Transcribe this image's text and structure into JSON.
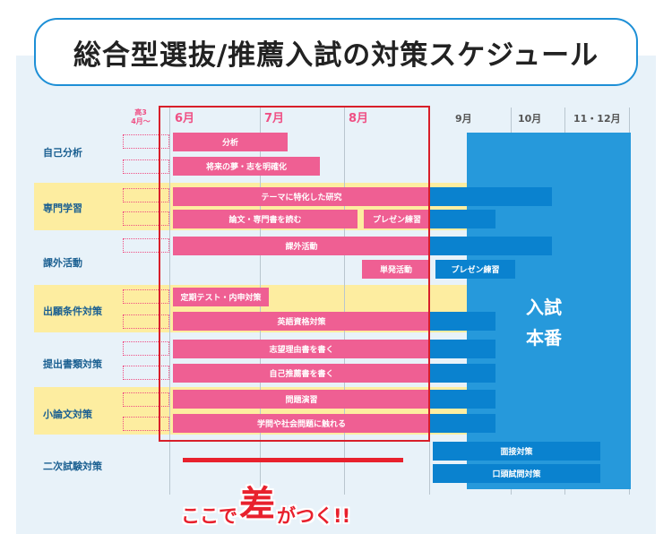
{
  "title": "総合型選抜/推薦入試の対策スケジュール",
  "colors": {
    "accent_blue": "#1d8fd6",
    "bar_pink": "#ef5f93",
    "bar_blue": "#0a82cf",
    "exam_panel": "#2699db",
    "band_yellow": "#fdeda0",
    "panel_bg": "#e8f2f9",
    "highlight_red": "#d81f2a"
  },
  "months": {
    "pre": [
      "高3",
      "4月〜"
    ],
    "items": [
      "6月",
      "7月",
      "8月",
      "9月",
      "10月",
      "11・12月"
    ]
  },
  "categories": [
    "自己分析",
    "専門学習",
    "課外活動",
    "出願条件対策",
    "提出書類対策",
    "小論文対策",
    "二次試験対策"
  ],
  "bars": {
    "bunseki": "分析",
    "yume": "将来の夢・志を明確化",
    "theme": "テーマに特化した研究",
    "ronbun": "論文・専門書を読む",
    "presen1": "プレゼン練習",
    "kagai": "課外活動",
    "tanpatsu": "単発活動",
    "presen2": "プレゼン練習",
    "teiki": "定期テスト・内申対策",
    "eigo": "英語資格対策",
    "shibou": "志望理由書を書く",
    "jisui": "自己推薦書を書く",
    "mondai": "問題演習",
    "gakumon": "学問や社会問題に触れる",
    "mensetsu": "面接対策",
    "koutou": "口頭試問対策"
  },
  "exam_label": [
    "入試",
    "本番"
  ],
  "slogan": {
    "part1": "ここで",
    "big": "差",
    "part2": "がつく!!"
  }
}
